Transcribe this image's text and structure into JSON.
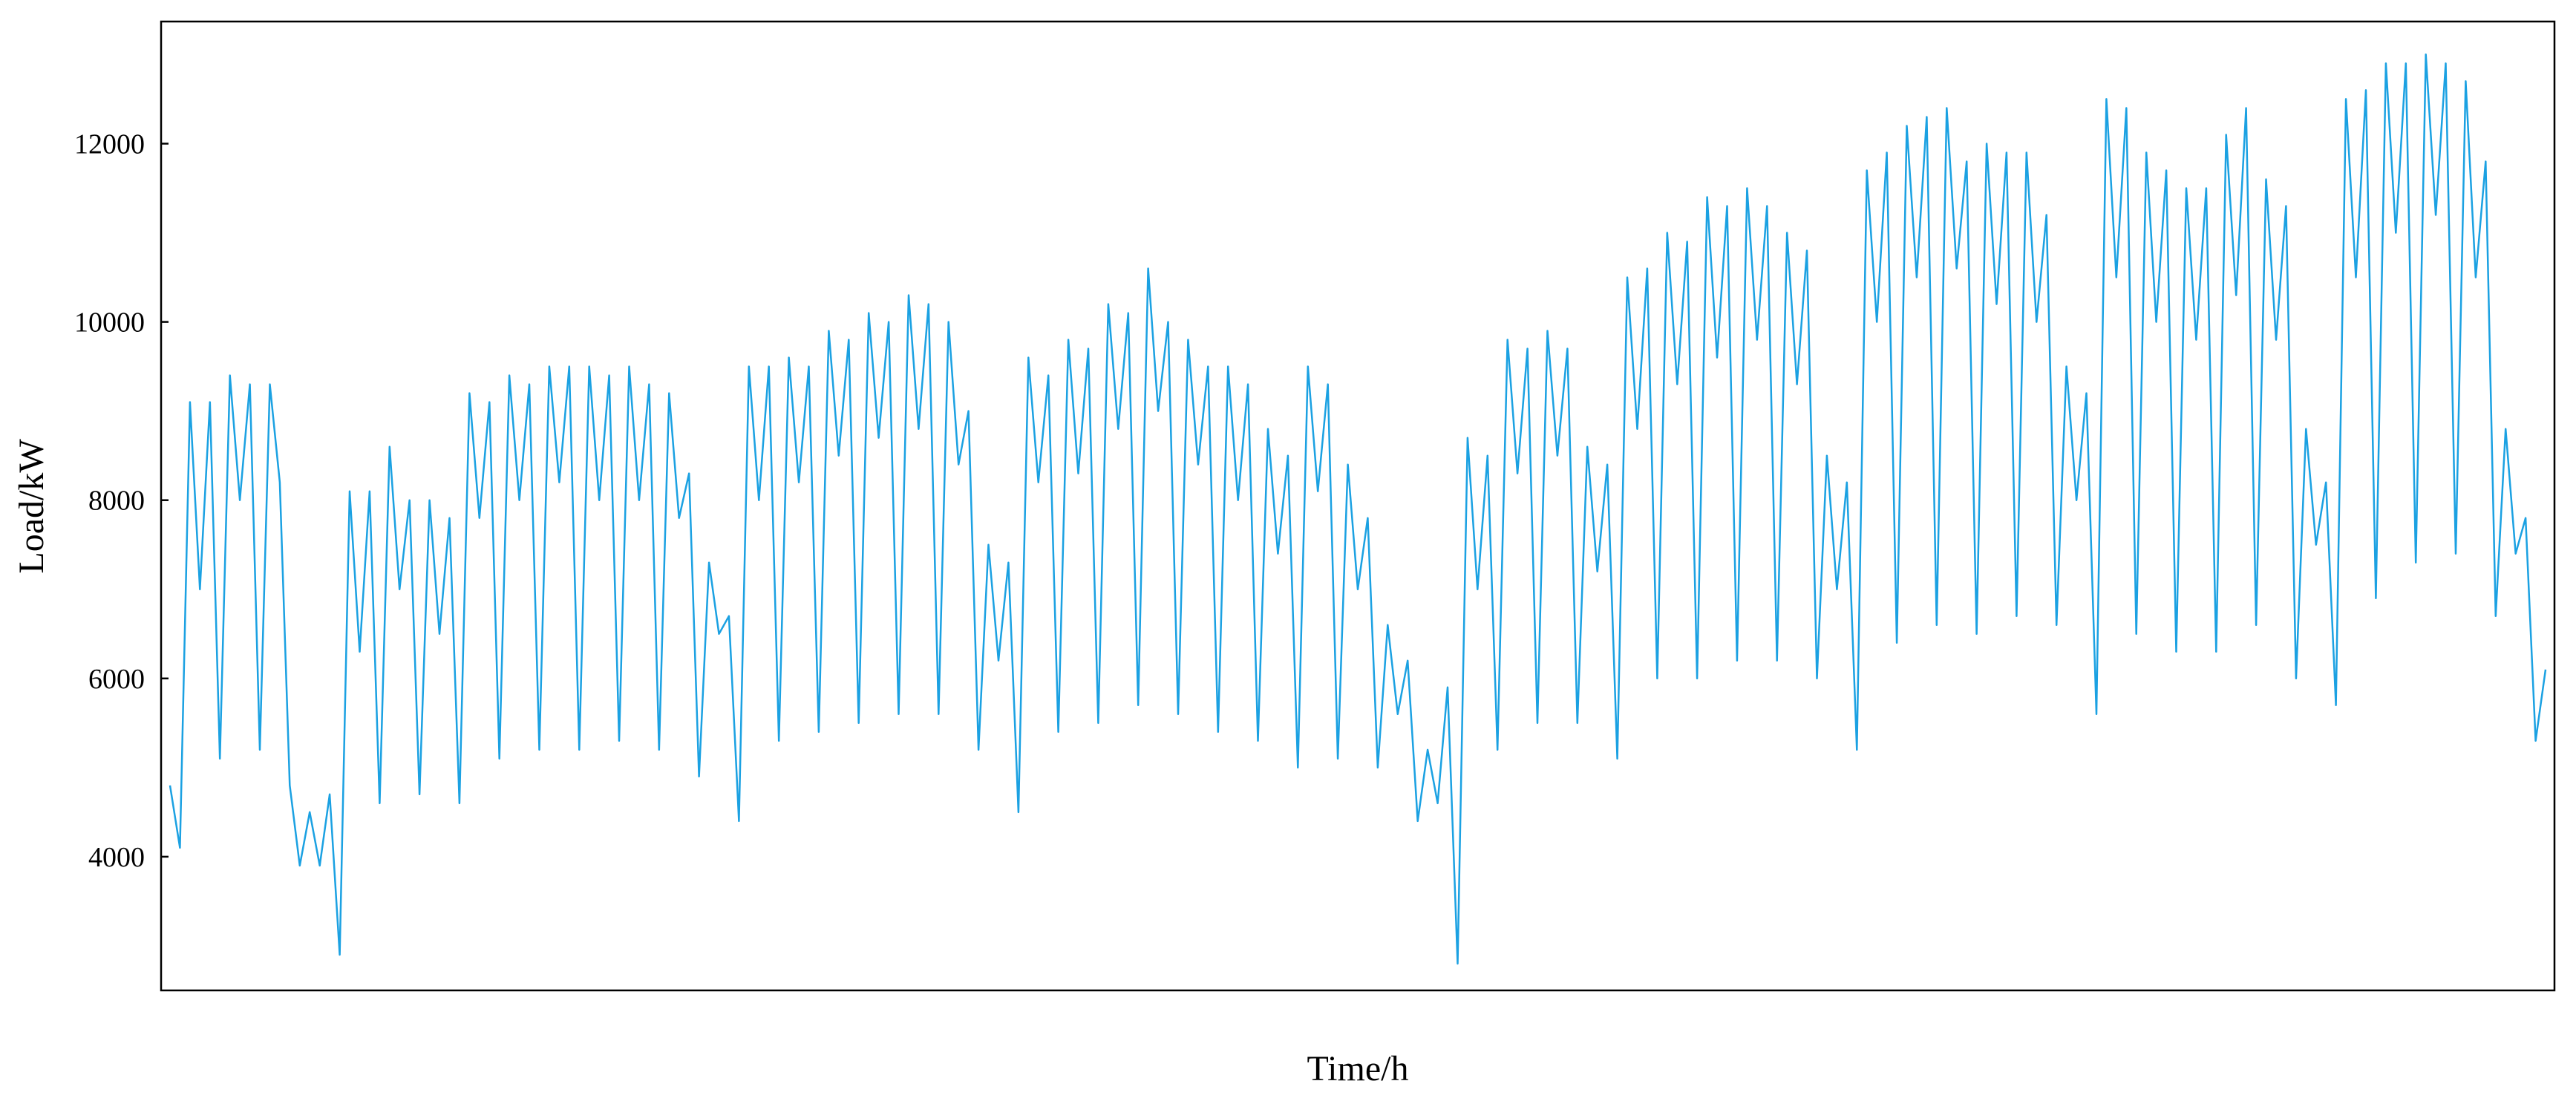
{
  "chart_data": {
    "type": "line",
    "x_label": "Time/h",
    "y_label": "Load/kW",
    "color": "#1ba1e2",
    "ylim": [
      2500,
      13370
    ],
    "yticks": [
      4000,
      6000,
      8000,
      10000,
      12000
    ],
    "values": [
      4800,
      4100,
      9100,
      7000,
      9100,
      5100,
      9400,
      8000,
      9300,
      5200,
      9300,
      8200,
      4800,
      3900,
      4500,
      3900,
      4700,
      2900,
      8100,
      6300,
      8100,
      4600,
      8600,
      7000,
      8000,
      4700,
      8000,
      6500,
      7800,
      4600,
      9200,
      7800,
      9100,
      5100,
      9400,
      8000,
      9300,
      5200,
      9500,
      8200,
      9500,
      5200,
      9500,
      8000,
      9400,
      5300,
      9500,
      8000,
      9300,
      5200,
      9200,
      7800,
      8300,
      4900,
      7300,
      6500,
      6700,
      4400,
      9500,
      8000,
      9500,
      5300,
      9600,
      8200,
      9500,
      5400,
      9900,
      8500,
      9800,
      5500,
      10100,
      8700,
      10000,
      5600,
      10300,
      8800,
      10200,
      5600,
      10000,
      8400,
      9000,
      5200,
      7500,
      6200,
      7300,
      4500,
      9600,
      8200,
      9400,
      5400,
      9800,
      8300,
      9700,
      5500,
      10200,
      8800,
      10100,
      5700,
      10600,
      9000,
      10000,
      5600,
      9800,
      8400,
      9500,
      5400,
      9500,
      8000,
      9300,
      5300,
      8800,
      7400,
      8500,
      5000,
      9500,
      8100,
      9300,
      5100,
      8400,
      7000,
      7800,
      5000,
      6600,
      5600,
      6200,
      4400,
      5200,
      4600,
      5900,
      2800,
      8700,
      7000,
      8500,
      5200,
      9800,
      8300,
      9700,
      5500,
      9900,
      8500,
      9700,
      5500,
      8600,
      7200,
      8400,
      5100,
      10500,
      8800,
      10600,
      6000,
      11000,
      9300,
      10900,
      6000,
      11400,
      9600,
      11300,
      6200,
      11500,
      9800,
      11300,
      6200,
      11000,
      9300,
      10800,
      6000,
      8500,
      7000,
      8200,
      5200,
      11700,
      10000,
      11900,
      6400,
      12200,
      10500,
      12300,
      6600,
      12400,
      10600,
      11800,
      6500,
      12000,
      10200,
      11900,
      6700,
      11900,
      10000,
      11200,
      6600,
      9500,
      8000,
      9200,
      5600,
      12500,
      10500,
      12400,
      6500,
      11900,
      10000,
      11700,
      6300,
      11500,
      9800,
      11500,
      6300,
      12100,
      10300,
      12400,
      6600,
      11600,
      9800,
      11300,
      6000,
      8800,
      7500,
      8200,
      5700,
      12500,
      10500,
      12600,
      6900,
      12900,
      11000,
      12900,
      7300,
      13000,
      11200,
      12900,
      7400,
      12700,
      10500,
      11800,
      6700,
      8800,
      7400,
      7800,
      5300,
      6100
    ]
  }
}
